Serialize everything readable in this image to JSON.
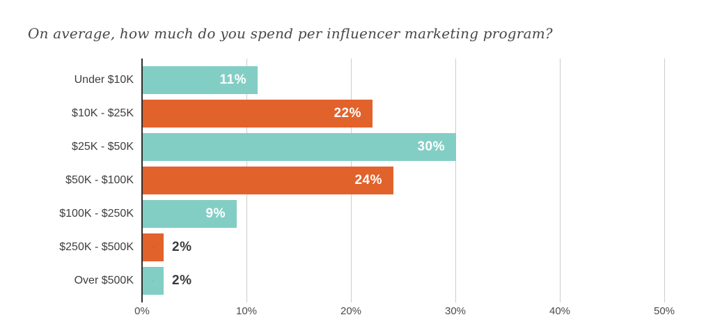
{
  "title": "On average, how much do you spend per influencer marketing program?",
  "colors": {
    "teal": "#83CEC4",
    "orange": "#E2622B",
    "axis_line": "#2d2d2d",
    "gridline": "#cccccc",
    "title_text": "#484848",
    "category_text": "#3d3d3d",
    "tick_text": "#4a4a4a",
    "value_inside_text": "#ffffff",
    "value_outside_text": "#3a3a3a"
  },
  "chart_data": {
    "type": "bar",
    "orientation": "horizontal",
    "title": "On average, how much do you spend per influencer marketing program?",
    "categories": [
      "Under $10K",
      "$10K - $25K",
      "$25K - $50K",
      "$50K - $100K",
      "$100K - $250K",
      "$250K - $500K",
      "Over $500K"
    ],
    "values": [
      11,
      22,
      30,
      24,
      9,
      2,
      2
    ],
    "value_labels": [
      "11%",
      "22%",
      "30%",
      "24%",
      "9%",
      "2%",
      "2%"
    ],
    "bar_colors": [
      "teal",
      "orange",
      "teal",
      "orange",
      "teal",
      "orange",
      "teal"
    ],
    "label_positions": [
      "inside",
      "inside",
      "inside",
      "inside",
      "inside",
      "outside",
      "outside"
    ],
    "x_ticks": [
      "0%",
      "10%",
      "20%",
      "30%",
      "40%",
      "50%"
    ],
    "x_tick_values": [
      0,
      10,
      20,
      30,
      40,
      50
    ],
    "xlim": [
      0,
      50
    ],
    "grid": true,
    "legend": false
  }
}
